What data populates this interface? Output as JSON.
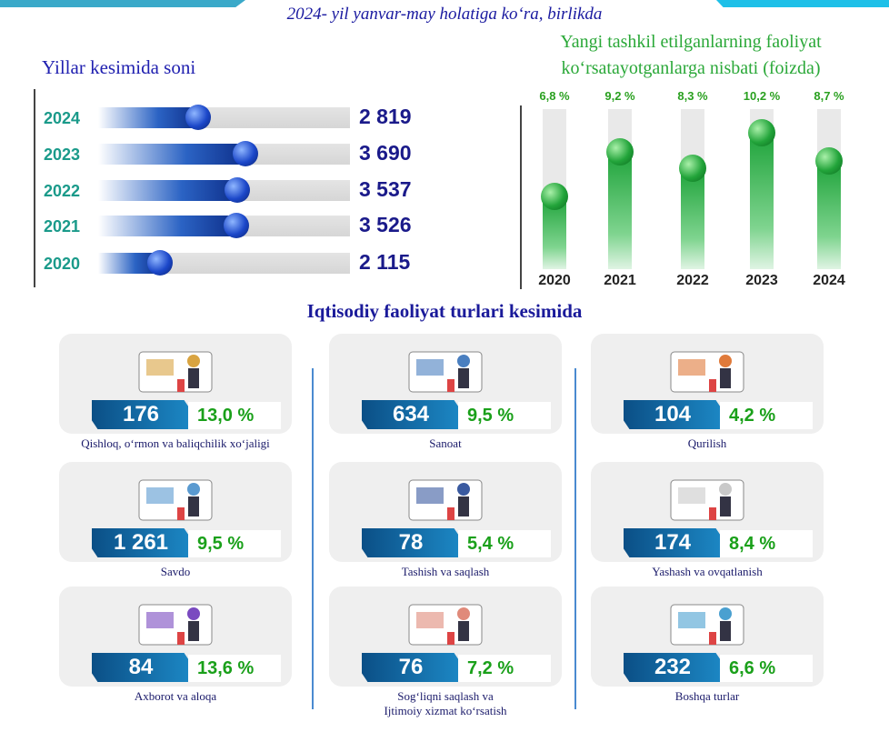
{
  "subtitle": "2024- yil yanvar-may holatiga ko‘ra, birlikda",
  "left_chart": {
    "title": "Yillar kesimida soni",
    "rows": [
      {
        "year": "2024",
        "value": 2819,
        "label": "2 819"
      },
      {
        "year": "2023",
        "value": 3690,
        "label": "3 690"
      },
      {
        "year": "2022",
        "value": 3537,
        "label": "3 537"
      },
      {
        "year": "2021",
        "value": 3526,
        "label": "3 526"
      },
      {
        "year": "2020",
        "value": 2115,
        "label": "2 115"
      }
    ]
  },
  "right_chart": {
    "title_line1": "Yangi tashkil etilganlarning faoliyat",
    "title_line2": "ko‘rsatayotganlarga nisbati (foizda)",
    "cols": [
      {
        "year": "2020",
        "value": 6.8,
        "label": "6,8 %"
      },
      {
        "year": "2021",
        "value": 9.2,
        "label": "9,2 %"
      },
      {
        "year": "2022",
        "value": 8.3,
        "label": "8,3 %"
      },
      {
        "year": "2023",
        "value": 10.2,
        "label": "10,2 %"
      },
      {
        "year": "2024",
        "value": 8.7,
        "label": "8,7 %"
      }
    ]
  },
  "section_title": "Iqtisodiy faoliyat turlari kesimida",
  "sectors": [
    {
      "count": "176",
      "share": "13,0 %",
      "name": "Qishloq, o‘rmon va baliqchilik xo‘jaligi",
      "icon": "agriculture-illustration"
    },
    {
      "count": "634",
      "share": "9,5 %",
      "name": "Sanoat",
      "icon": "industry-illustration"
    },
    {
      "count": "104",
      "share": "4,2 %",
      "name": "Qurilish",
      "icon": "construction-illustration"
    },
    {
      "count": "1 261",
      "share": "9,5 %",
      "name": "Savdo",
      "icon": "shopping-illustration"
    },
    {
      "count": "78",
      "share": "5,4 %",
      "name": "Tashish va saqlash",
      "icon": "transport-illustration"
    },
    {
      "count": "174",
      "share": "8,4 %",
      "name": "Yashash va ovqatlanish",
      "icon": "food-service-illustration"
    },
    {
      "count": "84",
      "share": "13,6 %",
      "name": "Axborot va aloqa",
      "icon": "it-illustration"
    },
    {
      "count": "76",
      "share": "7,2 %",
      "name": "Sog‘liqni saqlash va",
      "name2": "Ijtimoiy xizmat ko‘rsatish",
      "icon": "health-illustration"
    },
    {
      "count": "232",
      "share": "6,6 %",
      "name": "Boshqa turlar",
      "icon": "other-illustration"
    }
  ]
}
